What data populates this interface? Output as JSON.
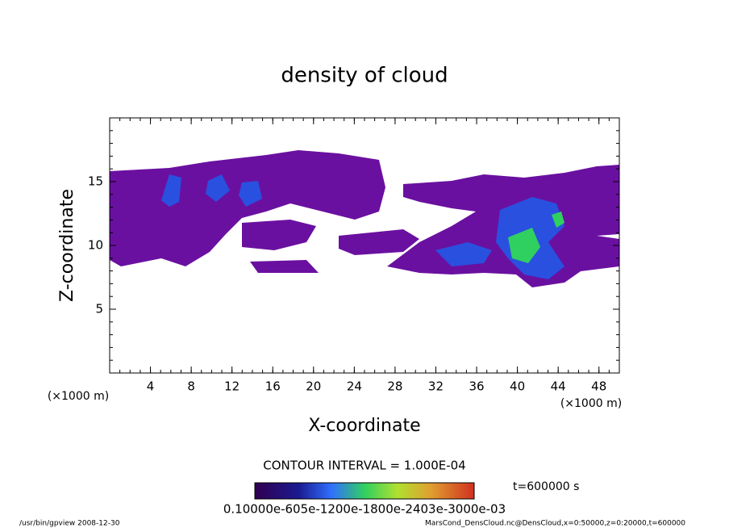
{
  "chart_data": {
    "type": "contour",
    "title": "density of cloud",
    "x_label": "X-coordinate",
    "y_label": "Z-coordinate",
    "x_unit": "(×1000 m)",
    "y_unit": "(×1000 m)",
    "xlim": [
      0,
      50
    ],
    "xticks": [
      4,
      8,
      12,
      16,
      20,
      24,
      28,
      32,
      36,
      40,
      44,
      48
    ],
    "ylim": [
      0,
      20
    ],
    "yticks": [
      5,
      10,
      15
    ],
    "contour_interval": "CONTOUR INTERVAL = 1.000E-04",
    "time": "t=600000 s",
    "colorbar_labels": "0.10000e-605e-1200e-1800e-2403e-3000e-03",
    "footer_left": "/usr/bin/gpview  2008-12-30",
    "footer_right": "MarsCond_DensCloud.nc@DensCloud,x=0:50000,z=0:20000,t=600000"
  }
}
